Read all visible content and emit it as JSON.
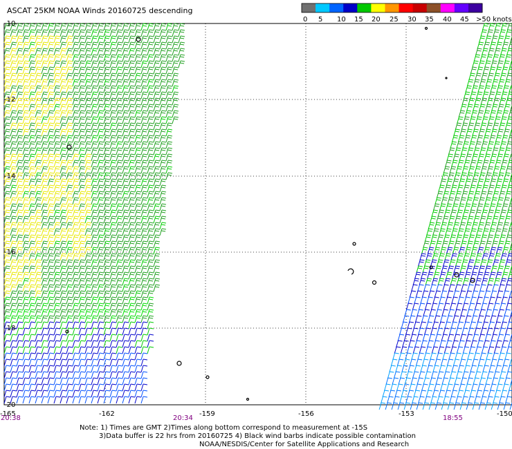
{
  "title": "ASCAT 25KM NOAA Winds 20160725 descending",
  "legend": {
    "labels": [
      "0",
      "5",
      "10",
      "15",
      "20",
      "25",
      "30",
      "35",
      "40",
      "45",
      ">50 knots"
    ],
    "colors": [
      "#707070",
      "#00c8ff",
      "#0064ff",
      "#0000c8",
      "#00c800",
      "#ffff00",
      "#ff9600",
      "#ff0000",
      "#c80000",
      "#8c5028",
      "#ff00ff",
      "#6400ff",
      "#3c00a0"
    ]
  },
  "map": {
    "lat_labels": [
      "-10",
      "-12",
      "-14",
      "-16",
      "-18",
      "-20"
    ],
    "lon_labels": [
      "-165",
      "-162",
      "-159",
      "-156",
      "-153",
      "-150"
    ],
    "pass_times": [
      "20:38",
      "20:34",
      "18:55"
    ]
  },
  "notes": {
    "line1": "Note: 1) Times are GMT 2)Times along bottom correspond to measurement at -15S",
    "line2": "3)Data buffer is 22 hrs from 20160725 4) Black wind barbs indicate possible contamination",
    "line3": "NOAA/NESDIS/Center for Satellite Applications and Research"
  }
}
